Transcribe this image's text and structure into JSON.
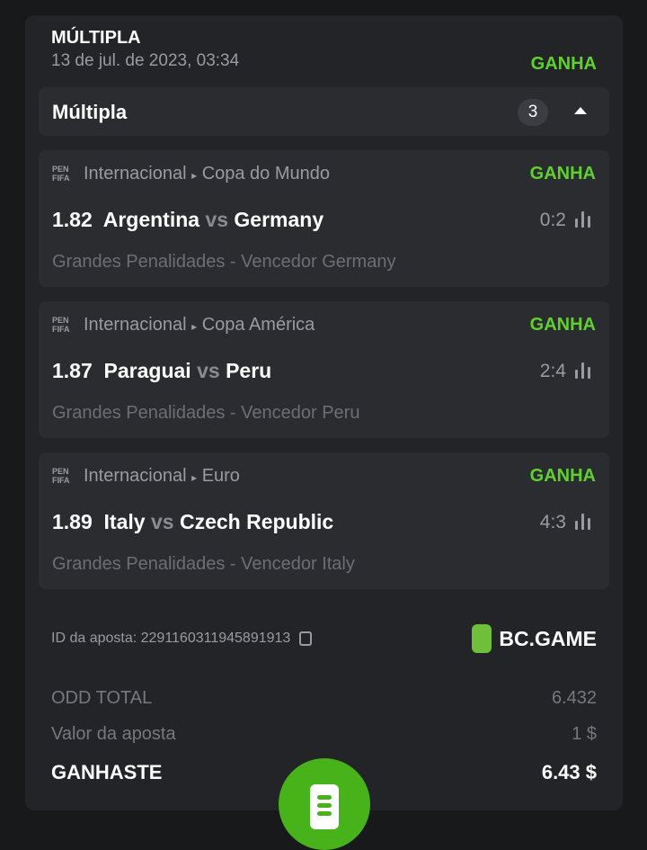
{
  "header": {
    "title": "MÚLTIPLA",
    "date": "13 de jul. de 2023, 03:34",
    "status": "GANHA"
  },
  "group": {
    "label": "Múltipla",
    "count": "3"
  },
  "matches": [
    {
      "league": "Internacional",
      "competition": "Copa do Mundo",
      "status": "GANHA",
      "odd": "1.82",
      "home": "Argentina",
      "vs": "vs",
      "away": "Germany",
      "score": "0:2",
      "market": "Grandes Penalidades - Vencedor Germany"
    },
    {
      "league": "Internacional",
      "competition": "Copa América",
      "status": "GANHA",
      "odd": "1.87",
      "home": "Paraguai",
      "vs": "vs",
      "away": "Peru",
      "score": "2:4",
      "market": "Grandes Penalidades - Vencedor Peru"
    },
    {
      "league": "Internacional",
      "competition": "Euro",
      "status": "GANHA",
      "odd": "1.89",
      "home": "Italy",
      "vs": "vs",
      "away": "Czech Republic",
      "score": "4:3",
      "market": "Grandes Penalidades - Vencedor Italy"
    }
  ],
  "sport_logo": "PENALTY FIFA 24",
  "bet_id": "ID da aposta: 2291160311945891913",
  "brand": "BC.GAME",
  "summary": {
    "odd_label": "ODD TOTAL",
    "odd_value": "6.432",
    "stake_label": "Valor da aposta",
    "stake_value": "1 $",
    "win_label": "GANHASTE",
    "win_value": "6.43 $"
  },
  "colors": {
    "accent": "#48b21a",
    "win": "#5fd12d"
  }
}
